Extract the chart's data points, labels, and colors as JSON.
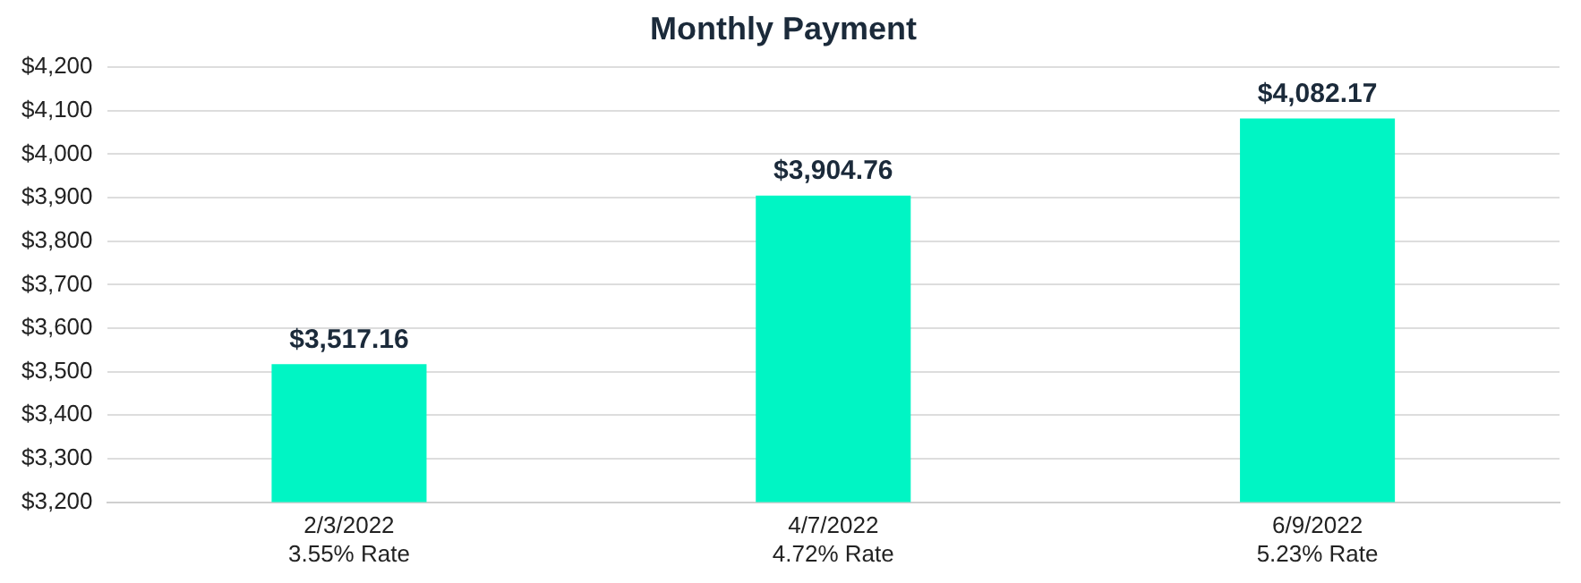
{
  "chart_data": {
    "type": "bar",
    "title": "Monthly Payment",
    "categories": [
      "2/3/2022\n3.55% Rate",
      "4/7/2022\n4.72% Rate",
      "6/9/2022\n5.23% Rate"
    ],
    "values": [
      3517.16,
      3904.76,
      4082.17
    ],
    "color": "#00f5c4",
    "value_labels": [
      "$3,517.16",
      "$3,904.76",
      "$4,082.17"
    ],
    "ylim": [
      3200,
      4200
    ],
    "yticks": [
      {
        "value": 3200,
        "label": "$3,200"
      },
      {
        "value": 3300,
        "label": "$3,300"
      },
      {
        "value": 3400,
        "label": "$3,400"
      },
      {
        "value": 3500,
        "label": "$3,500"
      },
      {
        "value": 3600,
        "label": "$3,600"
      },
      {
        "value": 3700,
        "label": "$3,700"
      },
      {
        "value": 3800,
        "label": "$3,800"
      },
      {
        "value": 3900,
        "label": "$3,900"
      },
      {
        "value": 4000,
        "label": "$4,000"
      },
      {
        "value": 4100,
        "label": "$4,100"
      },
      {
        "value": 4200,
        "label": "$4,200"
      }
    ],
    "grid": "y",
    "legend": false
  }
}
